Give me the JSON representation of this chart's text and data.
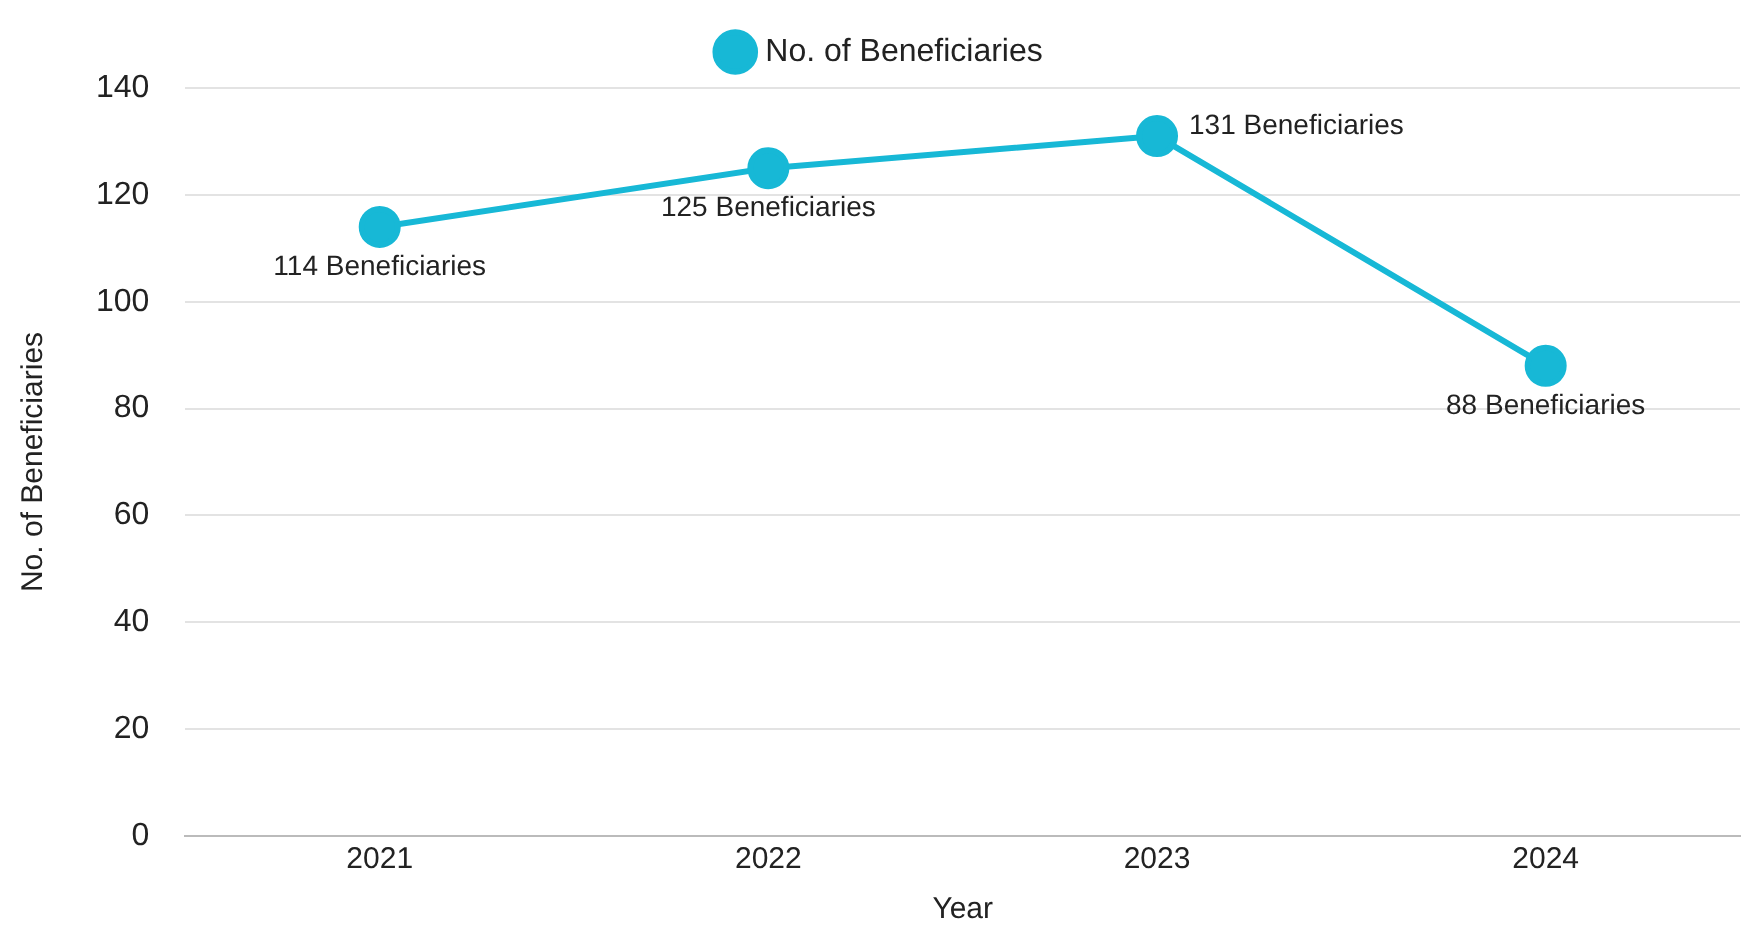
{
  "chart_data": {
    "type": "line",
    "xlabel": "Year",
    "ylabel": "No. of Beneficiaries",
    "categories": [
      "2021",
      "2022",
      "2023",
      "2024"
    ],
    "series": [
      {
        "name": "No. of Beneficiaries",
        "color": "#17b8d6",
        "values": [
          114,
          125,
          131,
          88
        ],
        "value_labels": [
          "114 Beneficiaries",
          "125 Beneficiaries",
          "131 Beneficiaries",
          "88 Beneficiaries"
        ]
      }
    ],
    "ylim": [
      0,
      140
    ],
    "yticks": [
      0,
      20,
      40,
      60,
      80,
      100,
      120,
      140
    ],
    "grid": "y",
    "legend": "top",
    "marker": "circle",
    "line_style": "solid"
  }
}
